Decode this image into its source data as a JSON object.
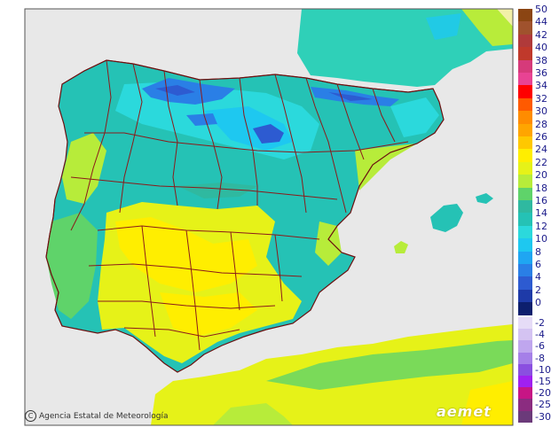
{
  "credit": "Agencia Estatal de Meteorología",
  "brand": "aemet",
  "legend": {
    "positive": [
      {
        "label": "50",
        "color": "#8b4513"
      },
      {
        "label": "44",
        "color": "#a0522d"
      },
      {
        "label": "42",
        "color": "#b03a3a"
      },
      {
        "label": "40",
        "color": "#c0392b"
      },
      {
        "label": "38",
        "color": "#d63a7a"
      },
      {
        "label": "36",
        "color": "#e84393"
      },
      {
        "label": "34",
        "color": "#ff0000"
      },
      {
        "label": "32",
        "color": "#ff5a00"
      },
      {
        "label": "30",
        "color": "#ff8c00"
      },
      {
        "label": "28",
        "color": "#ffa500"
      },
      {
        "label": "26",
        "color": "#ffc800"
      },
      {
        "label": "24",
        "color": "#ffee00"
      },
      {
        "label": "22",
        "color": "#e6f218"
      },
      {
        "label": "20",
        "color": "#b7ec3a"
      },
      {
        "label": "18",
        "color": "#5fd36a"
      },
      {
        "label": "16",
        "color": "#2fb9a0"
      },
      {
        "label": "14",
        "color": "#25c2b5"
      },
      {
        "label": "12",
        "color": "#2bd9dc"
      },
      {
        "label": "10",
        "color": "#1ec8f0"
      },
      {
        "label": "8",
        "color": "#1fa6f2"
      },
      {
        "label": "6",
        "color": "#2a7fe6"
      },
      {
        "label": "4",
        "color": "#2d5bd1"
      },
      {
        "label": "2",
        "color": "#1e3aa8"
      },
      {
        "label": "0",
        "color": "#0d1f6e"
      }
    ],
    "negative": [
      {
        "label": "-2",
        "color": "#e6dcf7"
      },
      {
        "label": "-4",
        "color": "#d4c3f2"
      },
      {
        "label": "-6",
        "color": "#bfa6ee"
      },
      {
        "label": "-8",
        "color": "#a57fe8"
      },
      {
        "label": "-10",
        "color": "#8a4fe0"
      },
      {
        "label": "-15",
        "color": "#a020f0"
      },
      {
        "label": "-20",
        "color": "#c71585"
      },
      {
        "label": "-25",
        "color": "#8b2c80"
      },
      {
        "label": "-30",
        "color": "#6b3a7a"
      }
    ]
  }
}
